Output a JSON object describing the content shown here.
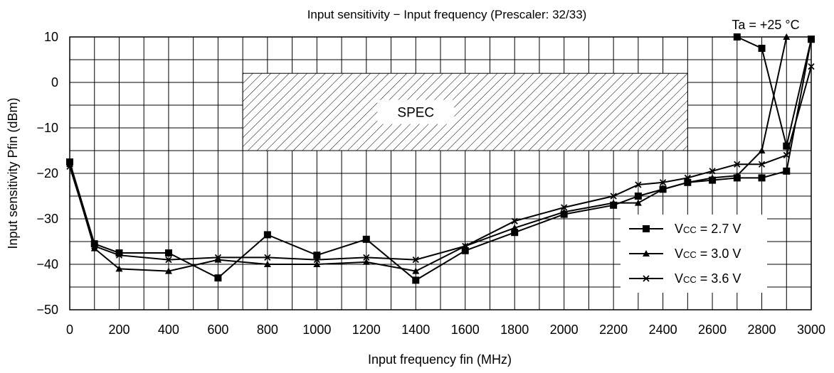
{
  "chart_data": {
    "type": "line",
    "title": "Input sensitivity − Input frequency (Prescaler: 32/33)",
    "xlabel": "Input frequency fin (MHz)",
    "ylabel": "Input sensitivity Pfin (dBm)",
    "xlim": [
      0,
      3000
    ],
    "ylim": [
      -50,
      10
    ],
    "x_ticks": [
      "0",
      "200",
      "400",
      "600",
      "800",
      "1000",
      "1200",
      "1400",
      "1600",
      "1800",
      "2000",
      "2200",
      "2400",
      "2600",
      "2800",
      "3000"
    ],
    "x_tick_values": [
      0,
      200,
      400,
      600,
      800,
      1000,
      1200,
      1400,
      1600,
      1800,
      2000,
      2200,
      2400,
      2600,
      2800,
      3000
    ],
    "y_ticks": [
      "10",
      "0",
      "−10",
      "−20",
      "−30",
      "−40",
      "−50"
    ],
    "y_tick_values": [
      10,
      0,
      -10,
      -20,
      -30,
      -40,
      -50
    ],
    "grid": true,
    "x_minor_grid_step": 100,
    "y_minor_grid_step": 5,
    "legend_position": "bottom-right",
    "annotations": {
      "temperature": "Ta = +25 °C",
      "spec_label": "SPEC",
      "spec_region": {
        "x": [
          700,
          2500
        ],
        "y": [
          -15,
          2
        ]
      }
    },
    "series": [
      {
        "name": "Vcc = 2.7 V",
        "name_main": "V",
        "name_sub": "CC",
        "name_rest": " = 2.7 V",
        "marker": "square",
        "x": [
          0,
          100,
          200,
          400,
          600,
          800,
          1000,
          1200,
          1400,
          1600,
          1800,
          2000,
          2200,
          2300,
          2400,
          2500,
          2600,
          2700,
          2800,
          2900,
          3000
        ],
        "y": [
          -17.5,
          -35.5,
          -37.5,
          -37.5,
          -43,
          -33.5,
          -38,
          -34.5,
          -43.5,
          -37,
          -33,
          -29,
          -27,
          -25,
          -23.5,
          -22,
          -21.5,
          -21,
          -21,
          -19.5,
          9.5
        ]
      },
      {
        "name": "Vcc = 3.0 V",
        "name_main": "V",
        "name_sub": "CC",
        "name_rest": " = 3.0 V",
        "marker": "triangle",
        "x": [
          0,
          100,
          200,
          400,
          600,
          800,
          1000,
          1200,
          1400,
          1600,
          1800,
          2000,
          2200,
          2300,
          2400,
          2500,
          2600,
          2700,
          2800,
          2900
        ],
        "y": [
          -18,
          -36.5,
          -41,
          -41.5,
          -39,
          -40,
          -40,
          -39.5,
          -41.5,
          -36,
          -32,
          -28.5,
          -26.5,
          -26.5,
          -23.5,
          -22,
          -21,
          -20.5,
          -15,
          10
        ]
      },
      {
        "name": "Vcc = 3.6 V",
        "name_main": "V",
        "name_sub": "CC",
        "name_rest": " = 3.6 V",
        "marker": "x",
        "x": [
          0,
          100,
          200,
          400,
          600,
          800,
          1000,
          1200,
          1400,
          1600,
          1800,
          2000,
          2200,
          2300,
          2400,
          2500,
          2600,
          2700,
          2800,
          2900,
          3000
        ],
        "y": [
          -18.5,
          -36,
          -38,
          -39,
          -38.5,
          -38.5,
          -39,
          -38.5,
          -39,
          -36,
          -30.5,
          -27.5,
          -25,
          -22.5,
          -22,
          -21,
          -19.5,
          -18,
          -18,
          -16,
          3.5
        ]
      },
      {
        "name": "",
        "marker": "square",
        "x": [
          2700,
          2800,
          2900,
          3000
        ],
        "y": [
          10,
          7.5,
          -14,
          9.5
        ],
        "note": "upper branch of Vcc = 2.7 V curve"
      }
    ]
  }
}
